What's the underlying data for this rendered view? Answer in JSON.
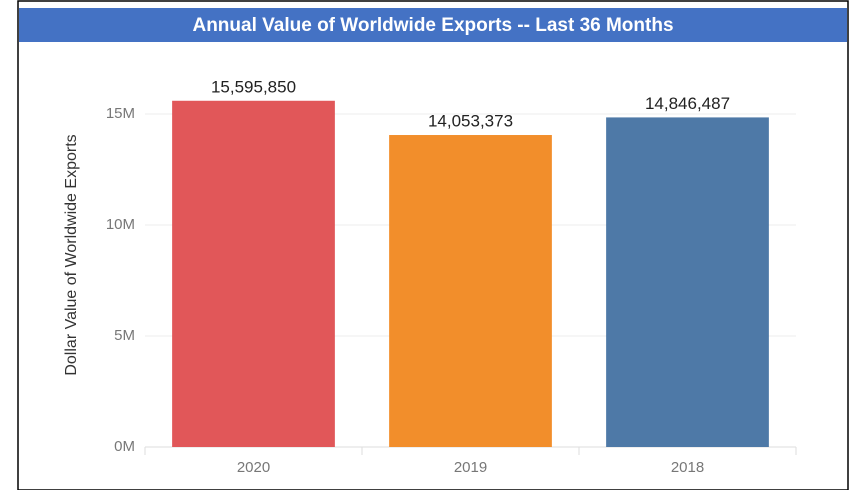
{
  "chart_data": {
    "type": "bar",
    "title": "Annual Value of Worldwide Exports -- Last 36 Months",
    "ylabel": "Dollar Value of Worldwide Exports",
    "categories": [
      "2020",
      "2019",
      "2018"
    ],
    "values": [
      15595850,
      14053373,
      14846487
    ],
    "value_labels": [
      "15,595,850",
      "14,053,373",
      "14,846,487"
    ],
    "colors": [
      "#e15759",
      "#f28e2b",
      "#4e79a7"
    ],
    "ylim": [
      0,
      17000000
    ],
    "yticks": [
      {
        "value": 0,
        "label": "0M"
      },
      {
        "value": 5000000,
        "label": "5M"
      },
      {
        "value": 10000000,
        "label": "10M"
      },
      {
        "value": 15000000,
        "label": "15M"
      }
    ],
    "grid": true
  }
}
